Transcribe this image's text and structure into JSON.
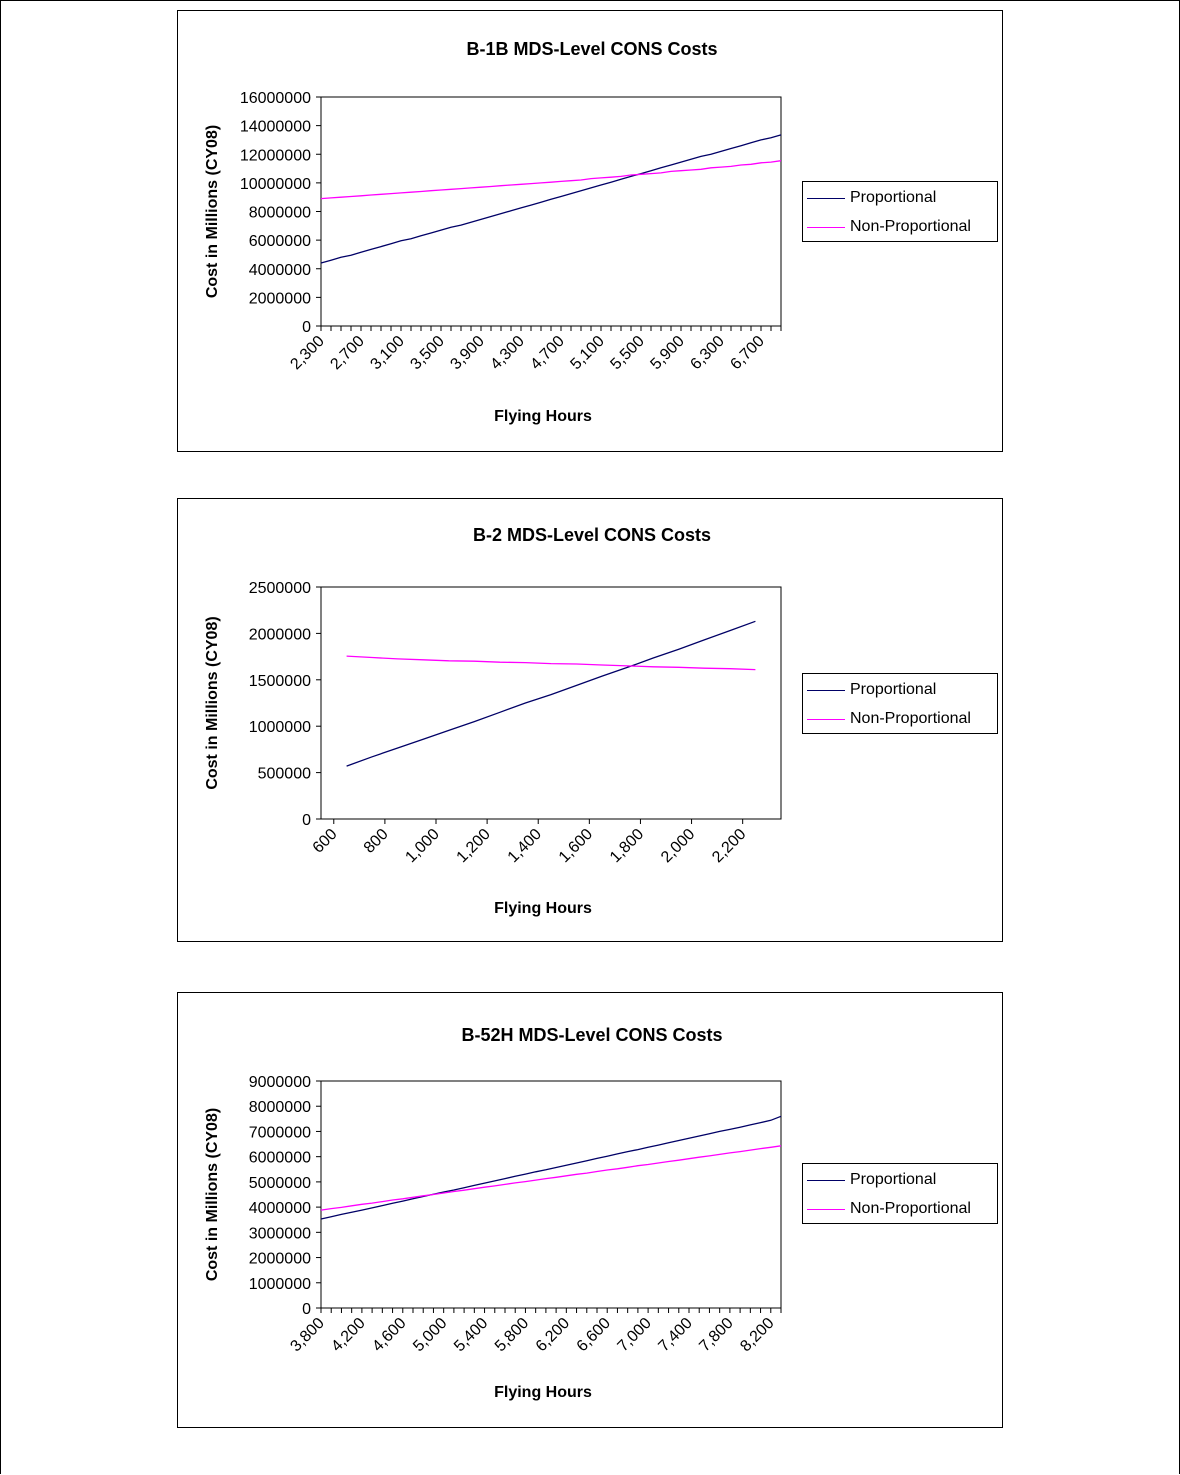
{
  "chart_data": [
    {
      "type": "line",
      "title": "B-1B MDS-Level CONS Costs",
      "xlabel": "Flying Hours",
      "ylabel": "Cost in Millions (CY08)",
      "ylim": [
        0,
        16000000
      ],
      "yticks": [
        "0",
        "2000000",
        "4000000",
        "6000000",
        "8000000",
        "10000000",
        "12000000",
        "14000000",
        "16000000"
      ],
      "xticks": [
        "2,300",
        "2,700",
        "3,100",
        "3,500",
        "3,900",
        "4,300",
        "4,700",
        "5,100",
        "5,500",
        "5,900",
        "6,300",
        "6,700"
      ],
      "x": [
        2300,
        2400,
        2500,
        2600,
        2700,
        2800,
        2900,
        3000,
        3100,
        3200,
        3300,
        3400,
        3500,
        3600,
        3700,
        3800,
        3900,
        4000,
        4100,
        4200,
        4300,
        4400,
        4500,
        4600,
        4700,
        4800,
        4900,
        5000,
        5100,
        5200,
        5300,
        5400,
        5500,
        5600,
        5700,
        5800,
        5900,
        6000,
        6100,
        6200,
        6300,
        6400,
        6500,
        6600,
        6700,
        6800,
        6900
      ],
      "legend": "right",
      "series": [
        {
          "name": "Proportional",
          "color": "#000066",
          "values": [
            4400000,
            4600000,
            4800000,
            4950000,
            5150000,
            5350000,
            5550000,
            5750000,
            5950000,
            6100000,
            6300000,
            6500000,
            6700000,
            6900000,
            7050000,
            7250000,
            7450000,
            7650000,
            7850000,
            8050000,
            8250000,
            8450000,
            8650000,
            8850000,
            9050000,
            9250000,
            9450000,
            9650000,
            9850000,
            10050000,
            10250000,
            10450000,
            10650000,
            10850000,
            11050000,
            11250000,
            11450000,
            11650000,
            11850000,
            12000000,
            12200000,
            12400000,
            12600000,
            12800000,
            13000000,
            13150000,
            13350000
          ]
        },
        {
          "name": "Non-Proportional",
          "color": "#ff00ff",
          "values": [
            8900000,
            8950000,
            9000000,
            9050000,
            9100000,
            9150000,
            9200000,
            9250000,
            9300000,
            9350000,
            9400000,
            9450000,
            9500000,
            9550000,
            9600000,
            9650000,
            9700000,
            9750000,
            9800000,
            9850000,
            9900000,
            9950000,
            10000000,
            10050000,
            10100000,
            10150000,
            10200000,
            10300000,
            10350000,
            10400000,
            10450000,
            10550000,
            10600000,
            10650000,
            10700000,
            10800000,
            10850000,
            10900000,
            10950000,
            11050000,
            11100000,
            11150000,
            11250000,
            11300000,
            11400000,
            11450000,
            11550000
          ]
        }
      ]
    },
    {
      "type": "line",
      "title": "B-2 MDS-Level CONS Costs",
      "xlabel": "Flying Hours",
      "ylabel": "Cost in Millions (CY08)",
      "ylim": [
        0,
        2500000
      ],
      "yticks": [
        "0",
        "500000",
        "1000000",
        "1500000",
        "2000000",
        "2500000"
      ],
      "xticks": [
        "600",
        "800",
        "1,000",
        "1,200",
        "1,400",
        "1,600",
        "1,800",
        "2,000",
        "2,200"
      ],
      "x": [
        650,
        750,
        850,
        950,
        1050,
        1150,
        1250,
        1350,
        1450,
        1550,
        1650,
        1750,
        1850,
        1950,
        2050,
        2150,
        2250
      ],
      "legend": "right",
      "series": [
        {
          "name": "Proportional",
          "color": "#000066",
          "values": [
            570000,
            670000,
            765000,
            860000,
            955000,
            1050000,
            1150000,
            1250000,
            1340000,
            1440000,
            1540000,
            1635000,
            1735000,
            1830000,
            1930000,
            2030000,
            2130000
          ]
        },
        {
          "name": "Non-Proportional",
          "color": "#ff00ff",
          "values": [
            1755000,
            1740000,
            1725000,
            1715000,
            1705000,
            1700000,
            1690000,
            1685000,
            1675000,
            1670000,
            1660000,
            1650000,
            1640000,
            1635000,
            1625000,
            1620000,
            1610000
          ]
        }
      ]
    },
    {
      "type": "line",
      "title": "B-52H MDS-Level CONS Costs",
      "xlabel": "Flying Hours",
      "ylabel": "Cost in Millions (CY08)",
      "ylim": [
        0,
        9000000
      ],
      "yticks": [
        "0",
        "1000000",
        "2000000",
        "3000000",
        "4000000",
        "5000000",
        "6000000",
        "7000000",
        "8000000",
        "9000000"
      ],
      "xticks": [
        "3,800",
        "4,200",
        "4,600",
        "5,000",
        "5,400",
        "5,800",
        "6,200",
        "6,600",
        "7,000",
        "7,400",
        "7,800",
        "8,200"
      ],
      "x": [
        3800,
        3900,
        4000,
        4100,
        4200,
        4300,
        4400,
        4500,
        4600,
        4700,
        4800,
        4900,
        5000,
        5100,
        5200,
        5300,
        5400,
        5500,
        5600,
        5700,
        5800,
        5900,
        6000,
        6100,
        6200,
        6300,
        6400,
        6500,
        6600,
        6700,
        6800,
        6900,
        7000,
        7100,
        7200,
        7300,
        7400,
        7500,
        7600,
        7700,
        7800,
        7900,
        8000,
        8100,
        8200,
        8300
      ],
      "legend": "right",
      "series": [
        {
          "name": "Proportional",
          "color": "#000066",
          "values": [
            3530000,
            3620000,
            3710000,
            3800000,
            3880000,
            3970000,
            4060000,
            4150000,
            4240000,
            4330000,
            4420000,
            4510000,
            4600000,
            4680000,
            4770000,
            4860000,
            4950000,
            5040000,
            5130000,
            5220000,
            5310000,
            5400000,
            5480000,
            5570000,
            5660000,
            5750000,
            5840000,
            5930000,
            6020000,
            6110000,
            6200000,
            6280000,
            6370000,
            6460000,
            6550000,
            6640000,
            6730000,
            6820000,
            6910000,
            7000000,
            7080000,
            7170000,
            7260000,
            7350000,
            7440000,
            7600000
          ]
        },
        {
          "name": "Non-Proportional",
          "color": "#ff00ff",
          "values": [
            3880000,
            3940000,
            3990000,
            4050000,
            4110000,
            4160000,
            4220000,
            4280000,
            4330000,
            4390000,
            4450000,
            4500000,
            4560000,
            4620000,
            4670000,
            4730000,
            4790000,
            4840000,
            4900000,
            4960000,
            5010000,
            5070000,
            5130000,
            5180000,
            5240000,
            5300000,
            5350000,
            5410000,
            5470000,
            5520000,
            5580000,
            5640000,
            5690000,
            5750000,
            5810000,
            5860000,
            5920000,
            5980000,
            6030000,
            6090000,
            6150000,
            6200000,
            6260000,
            6320000,
            6370000,
            6430000
          ]
        }
      ]
    }
  ]
}
